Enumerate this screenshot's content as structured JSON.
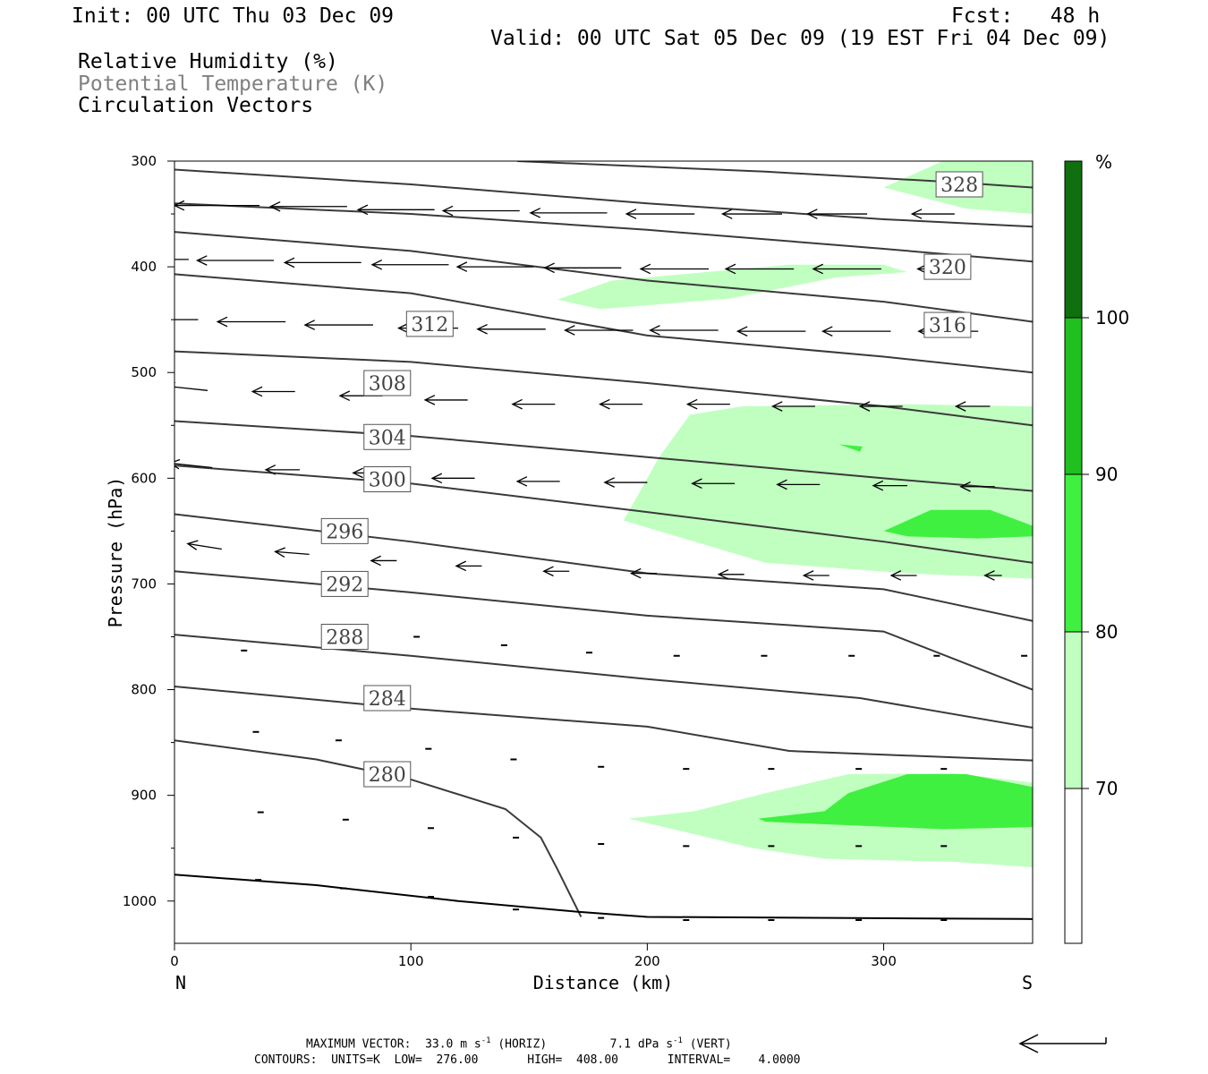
{
  "header": {
    "init": "Init: 00 UTC Thu 03 Dec 09",
    "fcst": "Fcst:   48 h",
    "valid": "Valid: 00 UTC Sat 05 Dec 09 (19 EST Fri 04 Dec 09)",
    "field1": "Relative Humidity (%)",
    "field2": "Potential Temperature (K)",
    "field3": "Circulation Vectors"
  },
  "footer": {
    "max_label": "MAXIMUM VECTOR:",
    "max_h": "33.0 m s",
    "sup1": "-1",
    "max_h_tail": " (HORIZ)",
    "max_v": "7.1 dPa s",
    "sup2": "-1",
    "max_v_tail": " (VERT)",
    "contours": "CONTOURS:  UNITS=K  LOW=  276.00       HIGH=  408.00       INTERVAL=    4.0000"
  },
  "colors": {
    "rh70": "#c0ffc0",
    "rh80": "#40f040",
    "rh90": "#20c020",
    "rh100": "#107010",
    "contour": "#3a3a3a",
    "label_bg": "#ffffff"
  },
  "chart_data": {
    "type": "heatmap",
    "title": "",
    "xlabel": "Distance (km)",
    "ylabel": "Pressure (hPa)",
    "xlim": [
      0,
      363
    ],
    "ylim": [
      1040,
      300
    ],
    "x_ticks": [
      "0",
      "100",
      "200",
      "300"
    ],
    "y_ticks": [
      "300",
      "400",
      "500",
      "600",
      "700",
      "800",
      "900",
      "1000"
    ],
    "x_end_labels": {
      "left": "N",
      "right": "S"
    },
    "colorbar": {
      "unit": "%",
      "levels": [
        "70",
        "80",
        "90",
        "100"
      ]
    },
    "theta_contours": [
      {
        "value": 280,
        "label": "280",
        "label_at": [
          90,
          880
        ],
        "points": [
          [
            0,
            848
          ],
          [
            60,
            866
          ],
          [
            100,
            885
          ],
          [
            140,
            913
          ],
          [
            155,
            940
          ],
          [
            162,
            970
          ],
          [
            172,
            1015
          ]
        ]
      },
      {
        "value": 284,
        "label": "284",
        "label_at": [
          90,
          808
        ],
        "points": [
          [
            0,
            797
          ],
          [
            100,
            818
          ],
          [
            200,
            835
          ],
          [
            260,
            858
          ],
          [
            363,
            867
          ]
        ]
      },
      {
        "value": 288,
        "label": "288",
        "label_at": [
          72,
          750
        ],
        "points": [
          [
            0,
            748
          ],
          [
            100,
            768
          ],
          [
            200,
            790
          ],
          [
            290,
            808
          ],
          [
            363,
            836
          ]
        ]
      },
      {
        "value": 292,
        "label": "292",
        "label_at": [
          72,
          700
        ],
        "points": [
          [
            0,
            688
          ],
          [
            100,
            708
          ],
          [
            200,
            730
          ],
          [
            300,
            745
          ],
          [
            363,
            800
          ]
        ]
      },
      {
        "value": 296,
        "label": "296",
        "label_at": [
          72,
          650
        ],
        "points": [
          [
            0,
            634
          ],
          [
            100,
            660
          ],
          [
            200,
            690
          ],
          [
            300,
            705
          ],
          [
            363,
            735
          ]
        ]
      },
      {
        "value": 300,
        "label": "300",
        "label_at": [
          90,
          601
        ],
        "points": [
          [
            0,
            588
          ],
          [
            100,
            605
          ],
          [
            200,
            632
          ],
          [
            300,
            660
          ],
          [
            363,
            680
          ]
        ]
      },
      {
        "value": 304,
        "label": "304",
        "label_at": [
          90,
          561
        ],
        "points": [
          [
            0,
            546
          ],
          [
            100,
            560
          ],
          [
            200,
            580
          ],
          [
            300,
            600
          ],
          [
            363,
            612
          ]
        ]
      },
      {
        "value": 308,
        "label": "308",
        "label_at": [
          90,
          510
        ],
        "points": [
          [
            0,
            480
          ],
          [
            100,
            490
          ],
          [
            200,
            510
          ],
          [
            300,
            532
          ],
          [
            363,
            550
          ]
        ]
      },
      {
        "value": 312,
        "label": "312",
        "label_at": [
          108,
          454
        ],
        "points": [
          [
            0,
            407
          ],
          [
            100,
            425
          ],
          [
            200,
            465
          ],
          [
            300,
            485
          ],
          [
            363,
            500
          ]
        ]
      },
      {
        "value": 316,
        "label": "316",
        "label_at": [
          327,
          455
        ],
        "points": [
          [
            0,
            367
          ],
          [
            100,
            385
          ],
          [
            200,
            413
          ],
          [
            300,
            433
          ],
          [
            363,
            452
          ]
        ]
      },
      {
        "value": 320,
        "label": "320",
        "label_at": [
          327,
          400
        ],
        "points": [
          [
            0,
            340
          ],
          [
            100,
            350
          ],
          [
            200,
            365
          ],
          [
            300,
            383
          ],
          [
            363,
            395
          ]
        ]
      },
      {
        "value": 324,
        "label": "",
        "label_at": null,
        "points": [
          [
            0,
            308
          ],
          [
            100,
            322
          ],
          [
            200,
            340
          ],
          [
            300,
            355
          ],
          [
            363,
            362
          ]
        ]
      },
      {
        "value": 328,
        "label": "328",
        "label_at": [
          332,
          322
        ],
        "points": [
          [
            145,
            300
          ],
          [
            250,
            310
          ],
          [
            330,
            320
          ],
          [
            363,
            325
          ]
        ]
      }
    ],
    "rh_regions": [
      {
        "level": "70",
        "points": [
          [
            325,
            300
          ],
          [
            363,
            300
          ],
          [
            363,
            350
          ],
          [
            335,
            345
          ],
          [
            300,
            325
          ]
        ]
      },
      {
        "level": "70",
        "points": [
          [
            162,
            431
          ],
          [
            185,
            413
          ],
          [
            225,
            405
          ],
          [
            260,
            398
          ],
          [
            300,
            398
          ],
          [
            310,
            405
          ],
          [
            280,
            410
          ],
          [
            235,
            430
          ],
          [
            180,
            440
          ]
        ]
      },
      {
        "level": "70",
        "points": [
          [
            190,
            640
          ],
          [
            205,
            580
          ],
          [
            218,
            540
          ],
          [
            240,
            532
          ],
          [
            310,
            530
          ],
          [
            363,
            532
          ],
          [
            363,
            695
          ],
          [
            310,
            690
          ],
          [
            250,
            680
          ]
        ]
      },
      {
        "level": "80",
        "points": [
          [
            300,
            650
          ],
          [
            320,
            630
          ],
          [
            345,
            630
          ],
          [
            363,
            645
          ],
          [
            363,
            655
          ],
          [
            340,
            657
          ],
          [
            310,
            655
          ]
        ]
      },
      {
        "level": "80",
        "points": [
          [
            281,
            568
          ],
          [
            291,
            570
          ],
          [
            290,
            575
          ]
        ]
      },
      {
        "level": "70",
        "points": [
          [
            192,
            922
          ],
          [
            220,
            915
          ],
          [
            250,
            898
          ],
          [
            285,
            880
          ],
          [
            330,
            879
          ],
          [
            363,
            888
          ],
          [
            363,
            968
          ],
          [
            330,
            963
          ],
          [
            275,
            960
          ],
          [
            245,
            950
          ]
        ]
      },
      {
        "level": "80",
        "points": [
          [
            247,
            922
          ],
          [
            275,
            915
          ],
          [
            285,
            898
          ],
          [
            310,
            880
          ],
          [
            335,
            880
          ],
          [
            363,
            892
          ],
          [
            363,
            930
          ],
          [
            325,
            932
          ],
          [
            250,
            925
          ]
        ]
      }
    ],
    "vectors": [
      {
        "x": 0,
        "p": 340,
        "u": -10,
        "w": 0
      },
      {
        "x": 36,
        "p": 342,
        "u": -10,
        "w": 0
      },
      {
        "x": 73,
        "p": 343,
        "u": -9,
        "w": 0
      },
      {
        "x": 110,
        "p": 346,
        "u": -9,
        "w": 0
      },
      {
        "x": 146,
        "p": 347,
        "u": -9,
        "w": 0
      },
      {
        "x": 183,
        "p": 349,
        "u": -9,
        "w": 0
      },
      {
        "x": 220,
        "p": 350,
        "u": -8,
        "w": 0
      },
      {
        "x": 257,
        "p": 350,
        "u": -7,
        "w": 0
      },
      {
        "x": 293,
        "p": 350,
        "u": -7,
        "w": 0
      },
      {
        "x": 330,
        "p": 350,
        "u": -5,
        "w": 0
      },
      {
        "x": 6,
        "p": 393,
        "u": -9,
        "w": 0
      },
      {
        "x": 42,
        "p": 394,
        "u": -9,
        "w": 0
      },
      {
        "x": 79,
        "p": 396,
        "u": -9,
        "w": 0
      },
      {
        "x": 116,
        "p": 398,
        "u": -9,
        "w": 0
      },
      {
        "x": 152,
        "p": 400,
        "u": -9,
        "w": 0
      },
      {
        "x": 189,
        "p": 401,
        "u": -9,
        "w": 0
      },
      {
        "x": 226,
        "p": 402,
        "u": -8,
        "w": 0
      },
      {
        "x": 262,
        "p": 402,
        "u": -8,
        "w": 0
      },
      {
        "x": 299,
        "p": 402,
        "u": -8,
        "w": 0
      },
      {
        "x": 336,
        "p": 402,
        "u": -6,
        "w": 0
      },
      {
        "x": 10,
        "p": 450,
        "u": -8,
        "w": 0
      },
      {
        "x": 47,
        "p": 452,
        "u": -8,
        "w": 0
      },
      {
        "x": 84,
        "p": 455,
        "u": -8,
        "w": 0
      },
      {
        "x": 120,
        "p": 458,
        "u": -7,
        "w": 0
      },
      {
        "x": 157,
        "p": 459,
        "u": -8,
        "w": 0
      },
      {
        "x": 194,
        "p": 460,
        "u": -8,
        "w": 0
      },
      {
        "x": 230,
        "p": 460,
        "u": -8,
        "w": 0
      },
      {
        "x": 267,
        "p": 461,
        "u": -8,
        "w": 0
      },
      {
        "x": 303,
        "p": 461,
        "u": -8,
        "w": 0
      },
      {
        "x": 340,
        "p": 461,
        "u": -7,
        "w": 0
      },
      {
        "x": 14,
        "p": 517,
        "u": -5,
        "w": 0.5
      },
      {
        "x": 51,
        "p": 518,
        "u": -5,
        "w": 0
      },
      {
        "x": 88,
        "p": 522,
        "u": -5,
        "w": 0
      },
      {
        "x": 124,
        "p": 526,
        "u": -5,
        "w": 0
      },
      {
        "x": 161,
        "p": 530,
        "u": -5,
        "w": 0
      },
      {
        "x": 198,
        "p": 530,
        "u": -5,
        "w": 0
      },
      {
        "x": 235,
        "p": 530,
        "u": -5,
        "w": 0
      },
      {
        "x": 271,
        "p": 532,
        "u": -5,
        "w": 0
      },
      {
        "x": 308,
        "p": 532,
        "u": -5,
        "w": 0
      },
      {
        "x": 345,
        "p": 532,
        "u": -4,
        "w": 0
      },
      {
        "x": 16,
        "p": 590,
        "u": -5,
        "w": 0.5
      },
      {
        "x": 53,
        "p": 592,
        "u": -4,
        "w": 0
      },
      {
        "x": 90,
        "p": 595,
        "u": -4,
        "w": 0
      },
      {
        "x": 127,
        "p": 600,
        "u": -5,
        "w": 0
      },
      {
        "x": 163,
        "p": 603,
        "u": -5,
        "w": 0
      },
      {
        "x": 200,
        "p": 604,
        "u": -5,
        "w": 0
      },
      {
        "x": 237,
        "p": 605,
        "u": -5,
        "w": 0
      },
      {
        "x": 273,
        "p": 606,
        "u": -5,
        "w": 0
      },
      {
        "x": 310,
        "p": 607,
        "u": -4,
        "w": 0
      },
      {
        "x": 347,
        "p": 608,
        "u": -4,
        "w": 0
      },
      {
        "x": 20,
        "p": 667,
        "u": -4,
        "w": 0.6
      },
      {
        "x": 57,
        "p": 672,
        "u": -4,
        "w": 0.3
      },
      {
        "x": 94,
        "p": 678,
        "u": -3,
        "w": 0
      },
      {
        "x": 130,
        "p": 683,
        "u": -3,
        "w": 0
      },
      {
        "x": 167,
        "p": 688,
        "u": -3,
        "w": 0
      },
      {
        "x": 204,
        "p": 690,
        "u": -3,
        "w": 0
      },
      {
        "x": 241,
        "p": 691,
        "u": -3,
        "w": 0
      },
      {
        "x": 277,
        "p": 692,
        "u": -3,
        "w": 0
      },
      {
        "x": 314,
        "p": 692,
        "u": -3,
        "w": 0
      },
      {
        "x": 350,
        "p": 692,
        "u": -2,
        "w": 0
      }
    ]
  }
}
